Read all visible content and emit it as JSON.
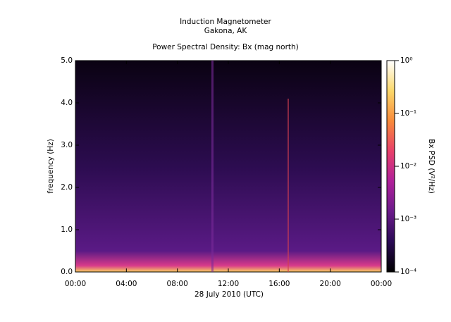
{
  "chart_data": {
    "type": "spectrogram",
    "title": "Induction Magnetometer",
    "subtitle": "Gakona, AK",
    "plot_title": "Power Spectral Density: Bx (mag north)",
    "xlabel": "28 July 2010 (UTC)",
    "ylabel": "frequency (Hz)",
    "xlim": [
      0,
      24
    ],
    "xticks": [
      {
        "value": 0,
        "label": "00:00"
      },
      {
        "value": 4,
        "label": "04:00"
      },
      {
        "value": 8,
        "label": "08:00"
      },
      {
        "value": 12,
        "label": "12:00"
      },
      {
        "value": 16,
        "label": "16:00"
      },
      {
        "value": 20,
        "label": "20:00"
      },
      {
        "value": 24,
        "label": "00:00"
      }
    ],
    "ylim": [
      0,
      5
    ],
    "yticks": [
      {
        "value": 0,
        "label": "0.0"
      },
      {
        "value": 1,
        "label": "1.0"
      },
      {
        "value": 2,
        "label": "2.0"
      },
      {
        "value": 3,
        "label": "3.0"
      },
      {
        "value": 4,
        "label": "4.0"
      },
      {
        "value": 5,
        "label": "5.0"
      }
    ],
    "colorbar": {
      "label": "Bx PSD (V²/Hz)",
      "scale": "log",
      "lim": [
        0.0001,
        1
      ],
      "ticks": [
        {
          "value": 0.0001,
          "label": "10⁻⁴"
        },
        {
          "value": 0.001,
          "label": "10⁻³"
        },
        {
          "value": 0.01,
          "label": "10⁻²"
        },
        {
          "value": 0.1,
          "label": "10⁻¹"
        },
        {
          "value": 1,
          "label": "10⁰"
        }
      ],
      "colormap": [
        "#000000",
        "#2a0a55",
        "#6a1a8a",
        "#b0209a",
        "#e8406a",
        "#f88a3a",
        "#fbd86a",
        "#ffffff"
      ]
    }
  }
}
